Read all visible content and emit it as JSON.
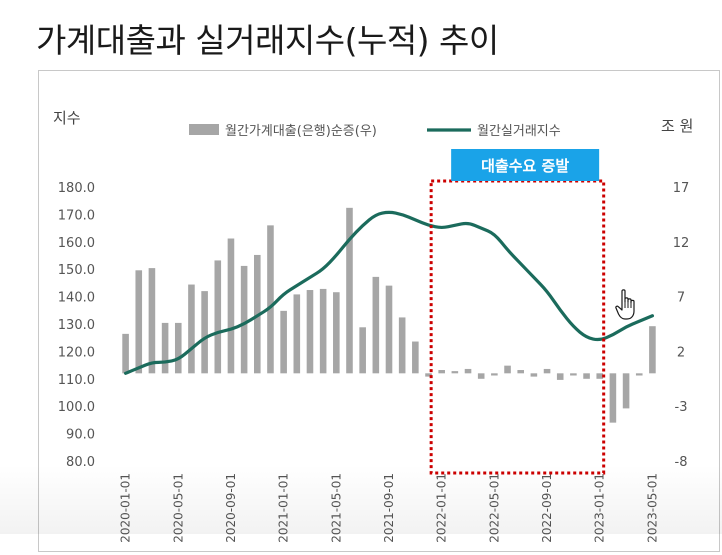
{
  "slide_title": "가계대출과 실거래지수(누적) 추이",
  "chart_data": {
    "type": "bar+line",
    "left_axis_title": "지수",
    "right_axis_title": "조 원",
    "left_ticks": [
      "180.0",
      "170.0",
      "160.0",
      "150.0",
      "140.0",
      "130.0",
      "120.0",
      "110.0",
      "100.0",
      "90.0",
      "80.0"
    ],
    "left_ylim": [
      80,
      180
    ],
    "right_ticks": [
      "17",
      "12",
      "7",
      "2",
      "-3",
      "-8"
    ],
    "right_ylim": [
      -8,
      17
    ],
    "x_tick_labels": [
      "2020-01-01",
      "2020-05-01",
      "2020-09-01",
      "2021-01-01",
      "2021-05-01",
      "2021-09-01",
      "2022-01-01",
      "2022-05-01",
      "2022-09-01",
      "2023-01-01",
      "2023-05-01"
    ],
    "months": [
      "2020-01",
      "2020-02",
      "2020-03",
      "2020-04",
      "2020-05",
      "2020-06",
      "2020-07",
      "2020-08",
      "2020-09",
      "2020-10",
      "2020-11",
      "2020-12",
      "2021-01",
      "2021-02",
      "2021-03",
      "2021-04",
      "2021-05",
      "2021-06",
      "2021-07",
      "2021-08",
      "2021-09",
      "2021-10",
      "2021-11",
      "2021-12",
      "2022-01",
      "2022-02",
      "2022-03",
      "2022-04",
      "2022-05",
      "2022-06",
      "2022-07",
      "2022-08",
      "2022-09",
      "2022-10",
      "2022-11",
      "2022-12",
      "2023-01",
      "2023-02",
      "2023-03",
      "2023-04",
      "2023-05"
    ],
    "series": [
      {
        "name": "월간가계대출(은행)순증(우)",
        "type": "bar",
        "axis": "right",
        "color": "#a6a6a6",
        "values": [
          3.6,
          9.4,
          9.6,
          4.6,
          4.6,
          8.1,
          7.5,
          10.3,
          12.3,
          9.8,
          10.8,
          13.5,
          5.7,
          7.2,
          7.6,
          7.7,
          7.4,
          15.1,
          4.2,
          8.8,
          8.0,
          5.1,
          2.9,
          -0.3,
          0.3,
          0.2,
          0.4,
          -0.5,
          -0.2,
          0.7,
          0.3,
          -0.3,
          0.4,
          -0.6,
          -0.2,
          -0.5,
          -0.5,
          -4.5,
          -3.2,
          -0.2,
          4.3
        ]
      },
      {
        "name": "월간실거래지수",
        "type": "line",
        "axis": "left",
        "color": "#1b6b5c",
        "values": [
          112.0,
          114.0,
          116.0,
          116.0,
          117.0,
          121.0,
          125.0,
          127.0,
          128.0,
          130.0,
          133.0,
          136.0,
          141.0,
          144.0,
          147.0,
          150.0,
          155.0,
          161.0,
          166.0,
          170.0,
          171.0,
          170.0,
          168.0,
          166.0,
          165.0,
          166.0,
          167.0,
          165.0,
          163.0,
          157.0,
          152.0,
          147.0,
          142.0,
          135.0,
          129.0,
          125.0,
          124.0,
          126.0,
          129.0,
          131.0,
          133.0
        ]
      }
    ],
    "annotation": {
      "label": "대출수요 증발",
      "from": "2022-01",
      "to": "2023-01",
      "box_color": "#cc0000",
      "label_color": "#1aa3e8"
    }
  }
}
